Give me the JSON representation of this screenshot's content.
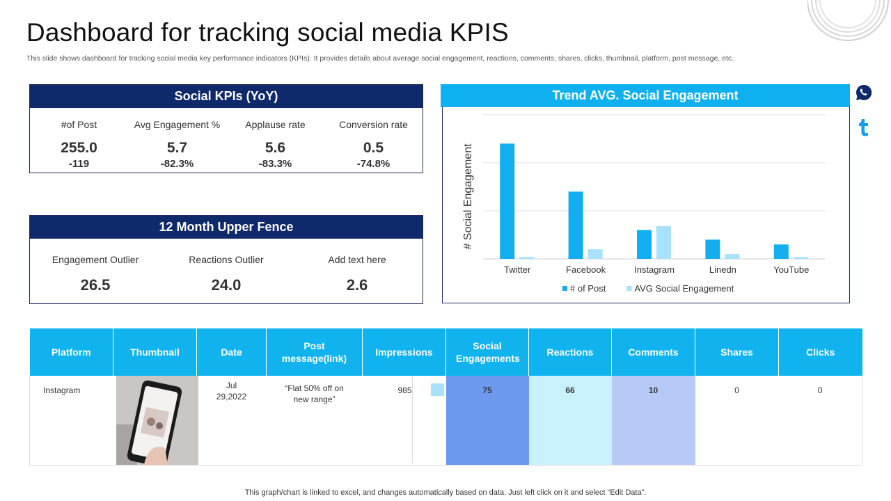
{
  "header": {
    "title": "Dashboard for tracking social media KPIS",
    "subtitle": "This slide shows dashboard for tracking social media key performance indicators (KPIs). It provides details about average social engagement, reactions, comments, shares, clicks, thumbnail, platform, post message, etc."
  },
  "kpis": {
    "title": "Social KPIs (YoY)",
    "items": [
      {
        "label": "#of Post",
        "value": "255.0",
        "delta": "-119"
      },
      {
        "label": "Avg Engagement %",
        "value": "5.7",
        "delta": "-82.3%"
      },
      {
        "label": "Applause rate",
        "value": "5.6",
        "delta": "-83.3%"
      },
      {
        "label": "Conversion rate",
        "value": "0.5",
        "delta": "-74.8%"
      }
    ]
  },
  "fence": {
    "title": "12 Month Upper Fence",
    "items": [
      {
        "label": "Engagement Outlier",
        "value": "26.5"
      },
      {
        "label": "Reactions Outlier",
        "value": "24.0"
      },
      {
        "label": "Add text here",
        "value": "2.6"
      }
    ]
  },
  "trend": {
    "title": "Trend AVG. Social Engagement"
  },
  "chart_data": {
    "type": "bar",
    "title": "Trend AVG. Social Engagement",
    "ylabel": "# Social Engagement",
    "xlabel": "",
    "categories": [
      "Twitter",
      "Facebook",
      "Instagram",
      "Linedn",
      "YouTube"
    ],
    "series": [
      {
        "name": "# of Post",
        "color": "#12aef0",
        "values": [
          120,
          70,
          30,
          20,
          15
        ]
      },
      {
        "name": "AVG Social Engagement",
        "color": "#a7e2fa",
        "values": [
          2,
          10,
          34,
          5,
          2
        ]
      }
    ],
    "ylim": [
      0,
      150
    ],
    "grid": true,
    "legend": "bottom"
  },
  "table": {
    "headers": [
      "Platform",
      "Thumbnail",
      "Date",
      "Post message(link)",
      "Impressions",
      "Social Engagements",
      "Reactions",
      "Comments",
      "Shares",
      "Clicks"
    ],
    "row": {
      "platform": "Instagram",
      "date": "Jul 29,2022",
      "message": "“Flat 50% off on new range”",
      "impressions": "985",
      "engagements": "75",
      "reactions": "66",
      "comments": "10",
      "shares": "0",
      "clicks": "0"
    },
    "colors": {
      "engagements": "#6c98ee",
      "reactions": "#c9f0fd",
      "comments": "#b7c9f7",
      "impressions_bar": "#a7e2fa"
    }
  },
  "footer": "This graph/chart is linked to excel,  and changes automatically based on data. Just left click on it and select “Edit Data”.",
  "icons": [
    "whatsapp-icon",
    "tumblr-icon"
  ]
}
